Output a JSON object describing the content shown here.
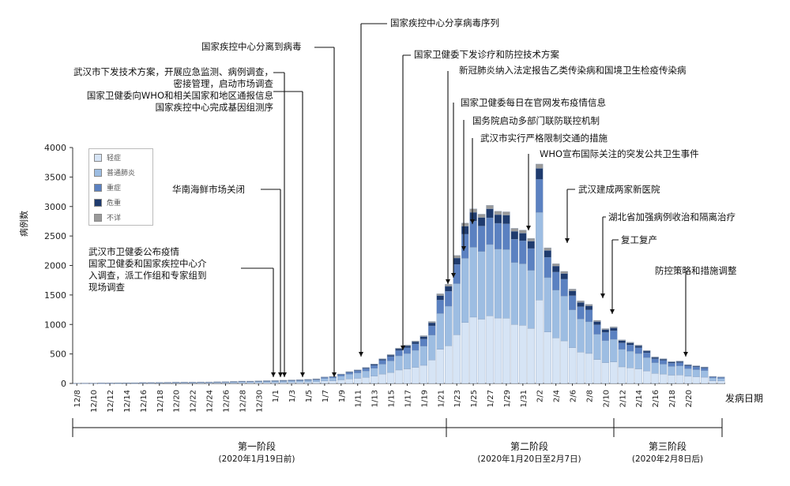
{
  "chart_data": {
    "type": "bar",
    "stacked": true,
    "ylabel": "病例数",
    "xlabel": "发病日期",
    "ylim": [
      0,
      4000
    ],
    "yticks": [
      0,
      500,
      1000,
      1500,
      2000,
      2500,
      3000,
      3500,
      4000
    ],
    "xtick_labels": [
      "12/8",
      "12/10",
      "12/12",
      "12/14",
      "12/16",
      "12/18",
      "12/20",
      "12/22",
      "12/24",
      "12/26",
      "12/28",
      "12/30",
      "1/1",
      "1/3",
      "1/5",
      "1/7",
      "1/9",
      "1/11",
      "1/13",
      "1/15",
      "1/17",
      "1/19",
      "1/21",
      "1/23",
      "1/25",
      "1/27",
      "1/29",
      "1/31",
      "2/2",
      "2/4",
      "2/6",
      "2/8",
      "2/10",
      "2/12",
      "2/14",
      "2/16",
      "2/18",
      "2/20"
    ],
    "series": [
      {
        "name": "轻症",
        "color": "#d6e4f5"
      },
      {
        "name": "普通肺炎",
        "color": "#9dbde2"
      },
      {
        "name": "重症",
        "color": "#5b81c1"
      },
      {
        "name": "危重",
        "color": "#1f3b6e"
      },
      {
        "name": "不详",
        "color": "#9a9a9a"
      }
    ],
    "totals": [
      5,
      6,
      6,
      8,
      8,
      10,
      12,
      12,
      15,
      15,
      18,
      20,
      22,
      22,
      22,
      25,
      25,
      28,
      30,
      35,
      40,
      40,
      45,
      48,
      50,
      55,
      60,
      65,
      70,
      80,
      110,
      120,
      160,
      200,
      230,
      270,
      330,
      420,
      490,
      600,
      650,
      720,
      810,
      1050,
      1520,
      1680,
      2170,
      2720,
      2960,
      2870,
      3020,
      2920,
      2910,
      2630,
      2600,
      2460,
      3720,
      2300,
      2030,
      1900,
      1600,
      1400,
      1340,
      1070,
      930,
      960,
      740,
      700,
      650,
      560,
      450,
      420,
      370,
      380,
      320,
      300,
      280,
      120,
      110
    ]
  },
  "annotations": {
    "a1": "武汉市卫健委公布疫情\n国家卫健委和国家疾控中心介\n入调查，派工作组和专家组到\n现场调查",
    "a2": "武汉市下发技术方案，开展应急监测、病例调查，\n密接管理，启动市场调查",
    "a3": "国家卫健委向WHO和相关国家和地区通报信息\n国家疾控中心完成基因组测序",
    "a4": "国家疾控中心分离到病毒",
    "a5": "华南海鲜市场关闭",
    "a6": "国家疾控中心分享病毒序列",
    "a7": "国家卫健委下发诊疗和防控技术方案",
    "a8": "新冠肺炎纳入法定报告乙类传染病和国境卫生检疫传染病",
    "a9": "国家卫健委每日在官网发布疫情信息",
    "a10": "国务院启动多部门联防联控机制",
    "a11": "武汉市实行严格限制交通的措施",
    "a12": "WHO宣布国际关注的突发公共卫生事件",
    "a13": "武汉建成两家新医院",
    "a14": "湖北省加强病例收治和隔离治疗",
    "a15": "复工复产",
    "a16": "防控策略和措施调整"
  },
  "phases": [
    {
      "name": "第一阶段",
      "range": "(2020年1月19日前)"
    },
    {
      "name": "第二阶段",
      "range": "(2020年1月20日至2月7日)"
    },
    {
      "name": "第三阶段",
      "range": "(2020年2月8日后)"
    }
  ]
}
